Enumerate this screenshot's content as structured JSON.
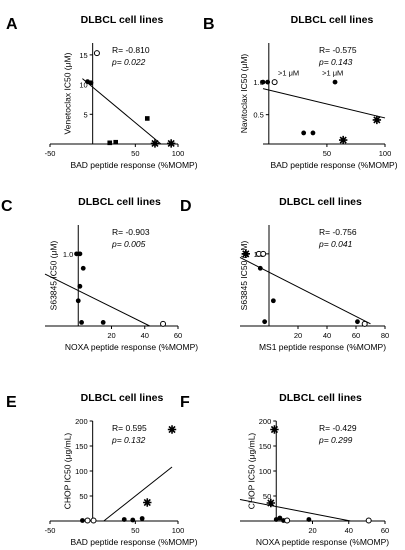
{
  "chart_data": [
    {
      "type": "scatter",
      "panel_letter": "A",
      "title": "DLBCL cell lines",
      "xlabel": "BAD peptide response (%MOMP)",
      "ylabel": "Venetoclax IC50 (μM)",
      "xlim": [
        -50,
        100
      ],
      "ylim": [
        0,
        17
      ],
      "xticks": [
        "-50",
        "50",
        "100"
      ],
      "yticks": [
        "5",
        "10",
        "15"
      ],
      "stats": {
        "r": "R= -0.810",
        "p": "p= 0.022"
      },
      "grid": false,
      "points": [
        {
          "x": -6,
          "y": 10.5,
          "marker": "circle"
        },
        {
          "x": -2,
          "y": 10.3,
          "marker": "circle"
        },
        {
          "x": 5,
          "y": 15.3,
          "marker": "open-circle"
        },
        {
          "x": 20,
          "y": 0.2,
          "marker": "square"
        },
        {
          "x": 27,
          "y": 0.3,
          "marker": "square"
        },
        {
          "x": 64,
          "y": 4.3,
          "marker": "square"
        },
        {
          "x": 73,
          "y": 0.1,
          "marker": "star"
        },
        {
          "x": 92,
          "y": 0.1,
          "marker": "star"
        }
      ],
      "fit_line": {
        "x": [
          -12,
          80
        ],
        "y": [
          11.0,
          0
        ]
      }
    },
    {
      "type": "scatter",
      "panel_letter": "B",
      "title": "DLBCL cell lines",
      "xlabel": "BAD peptide response (%MOMP)",
      "ylabel": "Navitoclax IC50 (μM)",
      "xlim": [
        -5,
        100
      ],
      "ylim": [
        0.05,
        1.6
      ],
      "xticks": [
        "50",
        "100"
      ],
      "yticks": [
        "1.0",
        "0.5"
      ],
      "stats": {
        "r": "R= -0.575",
        "p": "p= 0.143"
      },
      "grid": false,
      "annotations": [
        {
          "text": ">1 μM",
          "x": 17,
          "y": 1.1
        },
        {
          "text": ">1 μM",
          "x": 55,
          "y": 1.1
        }
      ],
      "points": [
        {
          "x": -5,
          "y": 1.0,
          "marker": "circle"
        },
        {
          "x": -1,
          "y": 1.0,
          "marker": "circle"
        },
        {
          "x": 5,
          "y": 1.0,
          "marker": "open-circle"
        },
        {
          "x": 57,
          "y": 1.0,
          "marker": "circle"
        },
        {
          "x": 30,
          "y": 0.22,
          "marker": "circle"
        },
        {
          "x": 38,
          "y": 0.22,
          "marker": "circle"
        },
        {
          "x": 64,
          "y": 0.11,
          "marker": "star"
        },
        {
          "x": 93,
          "y": 0.42,
          "marker": "star"
        }
      ],
      "fit_line": {
        "x": [
          -5,
          100
        ],
        "y": [
          0.9,
          0.45
        ]
      }
    },
    {
      "type": "scatter",
      "panel_letter": "C",
      "title": "DLBCL cell lines",
      "xlabel": "NOXA peptide response (%MOMP)",
      "ylabel": "S63845 IC50 (μM)",
      "xlim": [
        -20,
        60
      ],
      "ylim": [
        0,
        1.4
      ],
      "xticks": [
        "20",
        "40",
        "60"
      ],
      "yticks": [
        "1.0"
      ],
      "stats": {
        "r": "R= -0.903",
        "p": "p= 0.005"
      },
      "grid": false,
      "points": [
        {
          "x": -1,
          "y": 1.0,
          "marker": "circle"
        },
        {
          "x": 1,
          "y": 1.0,
          "marker": "circle"
        },
        {
          "x": 3,
          "y": 0.8,
          "marker": "circle"
        },
        {
          "x": 1,
          "y": 0.55,
          "marker": "circle"
        },
        {
          "x": 0,
          "y": 0.35,
          "marker": "circle"
        },
        {
          "x": 2,
          "y": 0.05,
          "marker": "circle"
        },
        {
          "x": 15,
          "y": 0.05,
          "marker": "circle"
        },
        {
          "x": 51,
          "y": 0.03,
          "marker": "open-circle"
        }
      ],
      "fit_line": {
        "x": [
          -20,
          43
        ],
        "y": [
          0.72,
          0
        ]
      }
    },
    {
      "type": "scatter",
      "panel_letter": "D",
      "title": "DLBCL cell lines",
      "xlabel": "MS1 peptide response (%MOMP)",
      "ylabel": "S63845 IC50 (μM)",
      "xlim": [
        -20,
        80
      ],
      "ylim": [
        0,
        1.4
      ],
      "xticks": [
        "20",
        "40",
        "60",
        "80"
      ],
      "yticks": [
        "1.0"
      ],
      "stats": {
        "r": "R= -0.756",
        "p": "p= 0.041"
      },
      "grid": false,
      "points": [
        {
          "x": -16,
          "y": 1.0,
          "marker": "star"
        },
        {
          "x": -7,
          "y": 1.0,
          "marker": "open-circle"
        },
        {
          "x": -4,
          "y": 1.0,
          "marker": "open-circle"
        },
        {
          "x": -6,
          "y": 0.8,
          "marker": "circle"
        },
        {
          "x": 3,
          "y": 0.35,
          "marker": "circle"
        },
        {
          "x": -3,
          "y": 0.06,
          "marker": "circle"
        },
        {
          "x": 61,
          "y": 0.06,
          "marker": "circle"
        },
        {
          "x": 66,
          "y": 0.03,
          "marker": "open-circle"
        }
      ],
      "fit_line": {
        "x": [
          -20,
          70
        ],
        "y": [
          0.95,
          0.03
        ]
      }
    },
    {
      "type": "scatter",
      "panel_letter": "E",
      "title": "DLBCL cell lines",
      "xlabel": "BAD peptide response (%MOMP)",
      "ylabel": "CHOP IC50 (μg/mL)",
      "xlim": [
        -50,
        100
      ],
      "ylim": [
        0,
        200
      ],
      "xticks": [
        "-50",
        "50",
        "100"
      ],
      "yticks": [
        "50",
        "100",
        "150",
        "200"
      ],
      "stats": {
        "r": "R= 0.595",
        "p": "p= 0.132"
      },
      "grid": false,
      "points": [
        {
          "x": -12,
          "y": 1,
          "marker": "circle"
        },
        {
          "x": -6,
          "y": 1,
          "marker": "open-circle"
        },
        {
          "x": 1,
          "y": 1,
          "marker": "open-circle"
        },
        {
          "x": 37,
          "y": 3,
          "marker": "circle"
        },
        {
          "x": 47,
          "y": 2,
          "marker": "circle"
        },
        {
          "x": 58,
          "y": 5,
          "marker": "circle"
        },
        {
          "x": 64,
          "y": 37,
          "marker": "star"
        },
        {
          "x": 93,
          "y": 183,
          "marker": "star"
        }
      ],
      "fit_line": {
        "x": [
          13,
          93
        ],
        "y": [
          0,
          108
        ]
      }
    },
    {
      "type": "scatter",
      "panel_letter": "F",
      "title": "DLBCL cell lines",
      "xlabel": "NOXA peptide response (%MOMP)",
      "ylabel": "CHOP IC50 (μg/mL)",
      "xlim": [
        -20,
        60
      ],
      "ylim": [
        0,
        200
      ],
      "xticks": [
        "20",
        "40",
        "60"
      ],
      "yticks": [
        "50",
        "100",
        "150",
        "200"
      ],
      "stats": {
        "r": "R= -0.429",
        "p": "p= 0.299"
      },
      "grid": false,
      "points": [
        {
          "x": -1,
          "y": 183,
          "marker": "star"
        },
        {
          "x": -3,
          "y": 36,
          "marker": "star"
        },
        {
          "x": 0,
          "y": 3,
          "marker": "circle"
        },
        {
          "x": 2,
          "y": 6,
          "marker": "circle"
        },
        {
          "x": 4,
          "y": 1,
          "marker": "circle"
        },
        {
          "x": 6,
          "y": 1,
          "marker": "open-circle"
        },
        {
          "x": 18,
          "y": 3,
          "marker": "circle"
        },
        {
          "x": 51,
          "y": 1,
          "marker": "open-circle"
        }
      ],
      "fit_line": {
        "x": [
          -20,
          41
        ],
        "y": [
          43,
          0
        ]
      }
    }
  ]
}
